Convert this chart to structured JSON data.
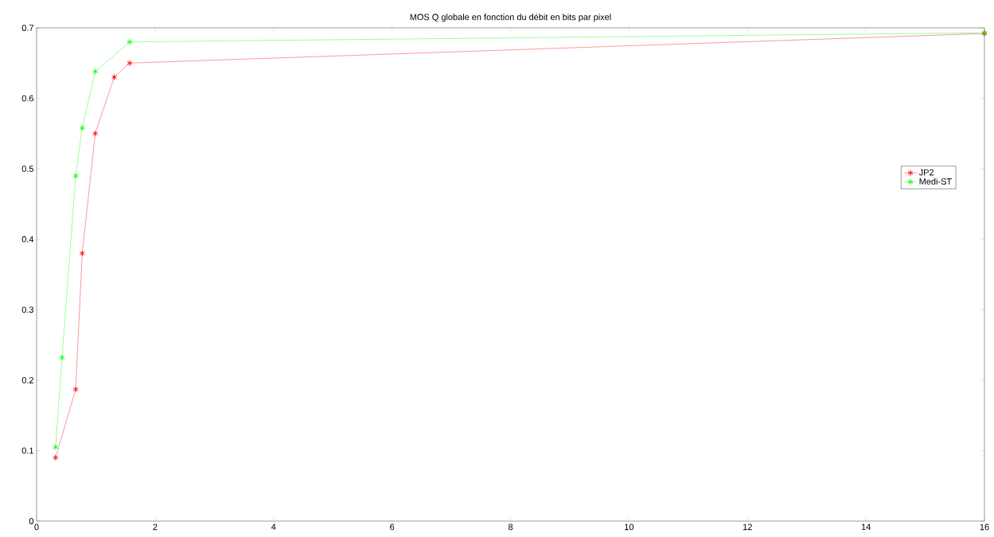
{
  "chart_data": {
    "type": "line",
    "title": "MOS Q globale en fonction du débit en bits par pixel",
    "xlim": [
      0,
      16
    ],
    "ylim": [
      0,
      0.7
    ],
    "xticks": [
      0,
      2,
      4,
      6,
      8,
      10,
      12,
      14,
      16
    ],
    "yticks": [
      0,
      0.1,
      0.2,
      0.3,
      0.4,
      0.5,
      0.6,
      0.7
    ],
    "marker": "cross",
    "line_style": "solid",
    "legend": "right",
    "series": [
      {
        "name": "JP2",
        "color": "#ff0000",
        "x": [
          0.32,
          0.66,
          0.77,
          0.99,
          1.31,
          1.57,
          16
        ],
        "values": [
          0.09,
          0.187,
          0.38,
          0.55,
          0.63,
          0.65,
          0.692
        ]
      },
      {
        "name": "Medi-ST",
        "color": "#00ff00",
        "x": [
          0.32,
          0.43,
          0.66,
          0.77,
          0.99,
          1.57,
          16
        ],
        "values": [
          0.105,
          0.232,
          0.49,
          0.558,
          0.638,
          0.68,
          0.693
        ]
      }
    ]
  }
}
